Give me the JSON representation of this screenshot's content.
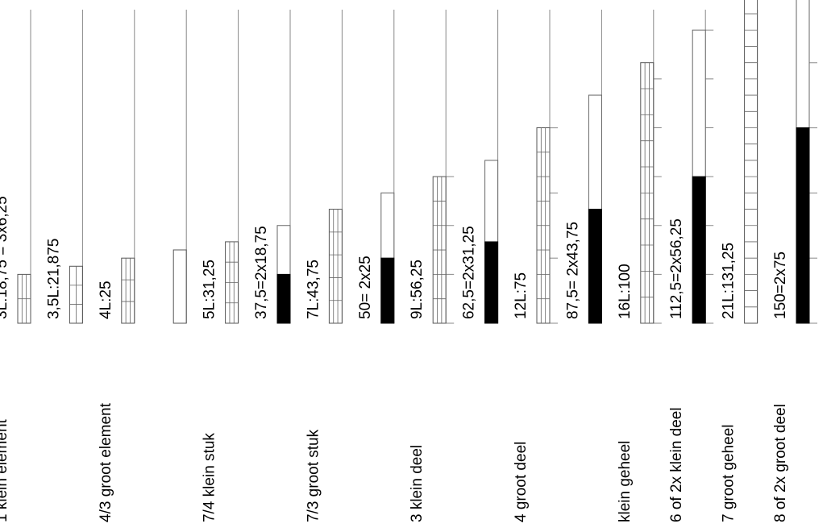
{
  "palette": {
    "line": "#000000",
    "fill": "#000000",
    "background": "#ffffff"
  },
  "columns": [
    {
      "value_label": "3L:18,75 = 3x6,25",
      "name_label": "1 klein element",
      "bar": {
        "height": 6.25,
        "rows": 2,
        "cols": 3,
        "filled": false
      },
      "post": "plain"
    },
    {
      "value_label": "3,5L:21,875",
      "name_label": "",
      "bar": {
        "height": 7.29,
        "rows": 3,
        "cols": 2,
        "filled": false
      },
      "post": "plain"
    },
    {
      "value_label": "4L:25",
      "name_label": "4/3 groot element",
      "bar": {
        "height": 8.33,
        "rows": 3,
        "cols": 3,
        "filled": false
      },
      "post": "plain"
    },
    {
      "value_label": "",
      "name_label": "",
      "bar": {
        "height": 9.38,
        "rows": 1,
        "cols": 1,
        "filled": false
      },
      "post": "plain"
    },
    {
      "value_label": "5L:31,25",
      "name_label": "7/4 klein stuk",
      "bar": {
        "height": 10.42,
        "rows": 4,
        "cols": 3,
        "filled": false
      },
      "post": "plain"
    },
    {
      "value_label": "37,5=2x18,75",
      "name_label": "",
      "bar": {
        "height": 12.5,
        "filled": true,
        "fill_fraction": 0.5
      },
      "post": "plain"
    },
    {
      "value_label": "7L:43,75",
      "name_label": "7/3 groot stuk",
      "bar": {
        "height": 14.58,
        "rows": 5,
        "cols": 3,
        "filled": false
      },
      "post": "plain"
    },
    {
      "value_label": "50= 2x25",
      "name_label": "",
      "bar": {
        "height": 16.67,
        "filled": true,
        "fill_fraction": 0.5
      },
      "post": "plain"
    },
    {
      "value_label": "9L:56,25",
      "name_label": "3 klein deel",
      "bar": {
        "height": 18.75,
        "rows": 6,
        "cols": 3,
        "filled": false
      },
      "post": "ticks",
      "tick_step": 6.25
    },
    {
      "value_label": "62,5=2x31,25",
      "name_label": "",
      "bar": {
        "height": 20.83,
        "filled": true,
        "fill_fraction": 0.5
      },
      "post": "plain"
    },
    {
      "value_label": "12L:75",
      "name_label": "4 groot deel",
      "bar": {
        "height": 25,
        "rows": 8,
        "cols": 3,
        "filled": false
      },
      "post": "ticks",
      "tick_step": 8.33
    },
    {
      "value_label": "87,5= 2x43,75",
      "name_label": "",
      "bar": {
        "height": 29.17,
        "filled": true,
        "fill_fraction": 0.5
      },
      "post": "plain"
    },
    {
      "value_label": "16L:100",
      "name_label": "klein geheel",
      "bar": {
        "height": 33.33,
        "rows": 10,
        "cols": 3,
        "filled": false
      },
      "post": "ticks",
      "tick_step": 6.25
    },
    {
      "value_label": "112,5=2x56,25",
      "name_label": "6 of 2x klein deel",
      "bar": {
        "height": 37.5,
        "filled": true,
        "fill_fraction": 0.5
      },
      "post": "ticks",
      "tick_step": 6.25
    },
    {
      "value_label": "21L:131,25",
      "name_label": "7 groot geheel",
      "bar": {
        "height": 43.75,
        "rows": 21,
        "cols": 1,
        "filled": false
      },
      "post": "plain"
    },
    {
      "value_label": "150=2x75",
      "name_label": "8 of 2x groot deel",
      "bar": {
        "height": 50,
        "filled": true,
        "fill_fraction": 0.5
      },
      "post": "ticks",
      "tick_step": 8.33
    }
  ]
}
